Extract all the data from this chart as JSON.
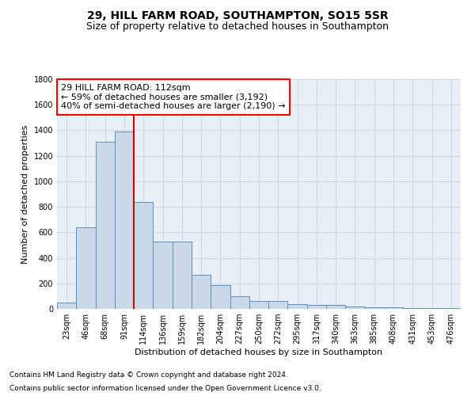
{
  "title1": "29, HILL FARM ROAD, SOUTHAMPTON, SO15 5SR",
  "title2": "Size of property relative to detached houses in Southampton",
  "xlabel": "Distribution of detached houses by size in Southampton",
  "ylabel": "Number of detached properties",
  "annotation_line1": "29 HILL FARM ROAD: 112sqm",
  "annotation_line2": "← 59% of detached houses are smaller (3,192)",
  "annotation_line3": "40% of semi-detached houses are larger (2,190) →",
  "property_sqm": 112,
  "categories": [
    "23sqm",
    "46sqm",
    "68sqm",
    "91sqm",
    "114sqm",
    "136sqm",
    "159sqm",
    "182sqm",
    "204sqm",
    "227sqm",
    "250sqm",
    "272sqm",
    "295sqm",
    "317sqm",
    "340sqm",
    "363sqm",
    "385sqm",
    "408sqm",
    "431sqm",
    "453sqm",
    "476sqm"
  ],
  "values": [
    50,
    640,
    1310,
    1390,
    840,
    530,
    530,
    270,
    185,
    100,
    65,
    65,
    35,
    30,
    30,
    20,
    15,
    10,
    8,
    5,
    8
  ],
  "bar_color": "#c9d9e8",
  "bar_edge_color": "#5a8fc0",
  "vline_color": "#cc0000",
  "vline_x_index": 4,
  "grid_color": "#d0d8e0",
  "plot_bg_color": "#e8eff6",
  "background_color": "#ffffff",
  "footnote1": "Contains HM Land Registry data © Crown copyright and database right 2024.",
  "footnote2": "Contains public sector information licensed under the Open Government Licence v3.0.",
  "title1_fontsize": 10,
  "title2_fontsize": 9,
  "ylabel_fontsize": 8,
  "xlabel_fontsize": 8,
  "tick_fontsize": 7,
  "annotation_fontsize": 8,
  "footnote_fontsize": 6.5,
  "ylim": [
    0,
    1800
  ]
}
